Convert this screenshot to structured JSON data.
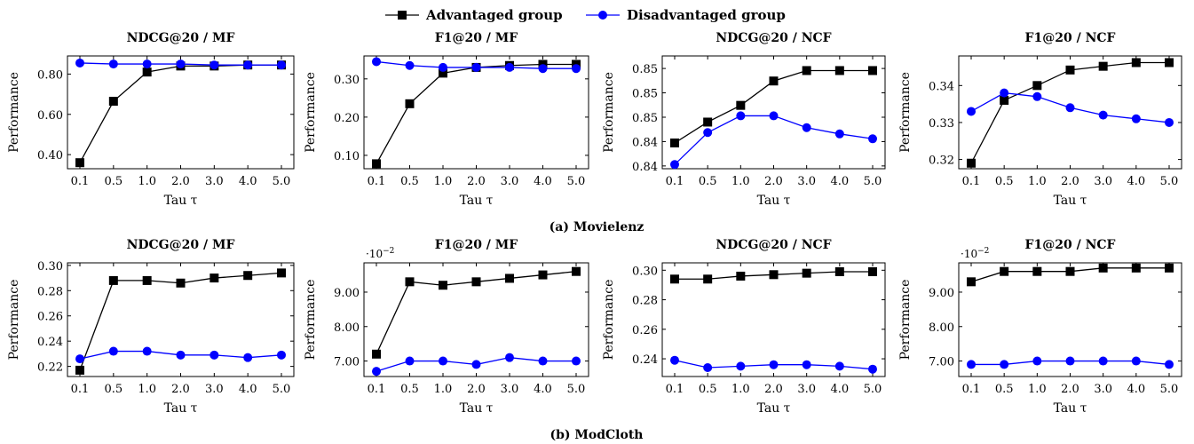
{
  "legend": {
    "items": [
      {
        "label": "Advantaged group",
        "color": "#000000",
        "marker": "square"
      },
      {
        "label": "Disadvantaged group",
        "color": "#0000ff",
        "marker": "circle"
      }
    ]
  },
  "captions": [
    "(a) Movielenz",
    "(b) ModCloth"
  ],
  "chart_data": [
    {
      "type": "line",
      "row": 0,
      "col": 0,
      "title": "NDCG@20 / MF",
      "xlabel": "Tau τ",
      "ylabel": "Performance",
      "categories": [
        "0.1",
        "0.5",
        "1.0",
        "2.0",
        "3.0",
        "4.0",
        "5.0"
      ],
      "yticks": [
        0.4,
        0.6,
        0.8
      ],
      "tick_labels": [
        "0.40",
        "0.60",
        "0.80"
      ],
      "ylim": [
        0.33,
        0.89
      ],
      "multiplier": "",
      "series": [
        {
          "name": "Advantaged group",
          "values": [
            0.36,
            0.665,
            0.81,
            0.84,
            0.84,
            0.845,
            0.845
          ]
        },
        {
          "name": "Disadvantaged group",
          "values": [
            0.855,
            0.85,
            0.85,
            0.85,
            0.845,
            0.845,
            0.845
          ]
        }
      ]
    },
    {
      "type": "line",
      "row": 0,
      "col": 1,
      "title": "F1@20 / MF",
      "xlabel": "Tau τ",
      "ylabel": "Performance",
      "categories": [
        "0.1",
        "0.5",
        "1.0",
        "2.0",
        "3.0",
        "4.0",
        "5.0"
      ],
      "yticks": [
        0.1,
        0.2,
        0.3
      ],
      "tick_labels": [
        "0.10",
        "0.20",
        "0.30"
      ],
      "ylim": [
        0.065,
        0.36
      ],
      "multiplier": "",
      "series": [
        {
          "name": "Advantaged group",
          "values": [
            0.078,
            0.235,
            0.315,
            0.33,
            0.335,
            0.338,
            0.338
          ]
        },
        {
          "name": "Disadvantaged group",
          "values": [
            0.345,
            0.335,
            0.33,
            0.33,
            0.33,
            0.327,
            0.327
          ]
        }
      ]
    },
    {
      "type": "line",
      "row": 0,
      "col": 2,
      "title": "NDCG@20 / NCF",
      "xlabel": "Tau τ",
      "ylabel": "Performance",
      "categories": [
        "0.1",
        "0.5",
        "1.0",
        "2.0",
        "3.0",
        "4.0",
        "5.0"
      ],
      "yticks": [
        0.84,
        0.8435,
        0.847,
        0.8505,
        0.854
      ],
      "tick_labels": [
        "0.84",
        "0.84",
        "0.85",
        "0.85",
        "0.85"
      ],
      "ylim": [
        0.8396,
        0.8558
      ],
      "multiplier": "",
      "series": [
        {
          "name": "Advantaged group",
          "values": [
            0.8433,
            0.8463,
            0.8487,
            0.8522,
            0.8537,
            0.8537,
            0.8537
          ]
        },
        {
          "name": "Disadvantaged group",
          "values": [
            0.8402,
            0.8448,
            0.8472,
            0.8472,
            0.8455,
            0.8446,
            0.8439
          ]
        }
      ]
    },
    {
      "type": "line",
      "row": 0,
      "col": 3,
      "title": "F1@20 / NCF",
      "xlabel": "Tau τ",
      "ylabel": "Performance",
      "categories": [
        "0.1",
        "0.5",
        "1.0",
        "2.0",
        "3.0",
        "4.0",
        "5.0"
      ],
      "yticks": [
        0.32,
        0.33,
        0.34
      ],
      "tick_labels": [
        "0.32",
        "0.33",
        "0.34"
      ],
      "ylim": [
        0.3175,
        0.348
      ],
      "multiplier": "",
      "series": [
        {
          "name": "Advantaged group",
          "values": [
            0.319,
            0.336,
            0.34,
            0.3442,
            0.3452,
            0.3462,
            0.3462
          ]
        },
        {
          "name": "Disadvantaged group",
          "values": [
            0.333,
            0.338,
            0.337,
            0.334,
            0.332,
            0.331,
            0.33
          ]
        }
      ]
    },
    {
      "type": "line",
      "row": 1,
      "col": 0,
      "title": "NDCG@20 / MF",
      "xlabel": "Tau τ",
      "ylabel": "Performance",
      "categories": [
        "0.1",
        "0.5",
        "1.0",
        "2.0",
        "3.0",
        "4.0",
        "5.0"
      ],
      "yticks": [
        0.22,
        0.24,
        0.26,
        0.28,
        0.3
      ],
      "tick_labels": [
        "0.22",
        "0.24",
        "0.26",
        "0.28",
        "0.30"
      ],
      "ylim": [
        0.212,
        0.302
      ],
      "multiplier": "",
      "series": [
        {
          "name": "Advantaged group",
          "values": [
            0.217,
            0.288,
            0.288,
            0.286,
            0.29,
            0.292,
            0.294
          ]
        },
        {
          "name": "Disadvantaged group",
          "values": [
            0.226,
            0.232,
            0.232,
            0.229,
            0.229,
            0.227,
            0.229
          ]
        }
      ]
    },
    {
      "type": "line",
      "row": 1,
      "col": 1,
      "title": "F1@20 / MF",
      "xlabel": "Tau τ",
      "ylabel": "Performance",
      "categories": [
        "0.1",
        "0.5",
        "1.0",
        "2.0",
        "3.0",
        "4.0",
        "5.0"
      ],
      "yticks": [
        7,
        8,
        9
      ],
      "tick_labels": [
        "7.00",
        "8.00",
        "9.00"
      ],
      "ylim": [
        6.55,
        9.85
      ],
      "multiplier": "·10",
      "multiplier_exp": "−2",
      "series": [
        {
          "name": "Advantaged group",
          "values": [
            7.2,
            9.3,
            9.2,
            9.3,
            9.4,
            9.5,
            9.6
          ]
        },
        {
          "name": "Disadvantaged group",
          "values": [
            6.7,
            7.0,
            7.0,
            6.9,
            7.1,
            7.0,
            7.0
          ]
        }
      ]
    },
    {
      "type": "line",
      "row": 1,
      "col": 2,
      "title": "NDCG@20 / NCF",
      "xlabel": "Tau τ",
      "ylabel": "Performance",
      "categories": [
        "0.1",
        "0.5",
        "1.0",
        "2.0",
        "3.0",
        "4.0",
        "5.0"
      ],
      "yticks": [
        0.24,
        0.26,
        0.28,
        0.3
      ],
      "tick_labels": [
        "0.24",
        "0.26",
        "0.28",
        "0.30"
      ],
      "ylim": [
        0.228,
        0.305
      ],
      "multiplier": "",
      "series": [
        {
          "name": "Advantaged group",
          "values": [
            0.294,
            0.294,
            0.296,
            0.297,
            0.298,
            0.299,
            0.299
          ]
        },
        {
          "name": "Disadvantaged group",
          "values": [
            0.239,
            0.234,
            0.235,
            0.236,
            0.236,
            0.235,
            0.233
          ]
        }
      ]
    },
    {
      "type": "line",
      "row": 1,
      "col": 3,
      "title": "F1@20 / NCF",
      "xlabel": "Tau τ",
      "ylabel": "Performance",
      "categories": [
        "0.1",
        "0.5",
        "1.0",
        "2.0",
        "3.0",
        "4.0",
        "5.0"
      ],
      "yticks": [
        7,
        8,
        9
      ],
      "tick_labels": [
        "7.00",
        "8.00",
        "9.00"
      ],
      "ylim": [
        6.55,
        9.85
      ],
      "multiplier": "·10",
      "multiplier_exp": "−2",
      "series": [
        {
          "name": "Advantaged group",
          "values": [
            9.3,
            9.6,
            9.6,
            9.6,
            9.7,
            9.7,
            9.7
          ]
        },
        {
          "name": "Disadvantaged group",
          "values": [
            6.9,
            6.9,
            7.0,
            7.0,
            7.0,
            7.0,
            6.9
          ]
        }
      ]
    }
  ]
}
